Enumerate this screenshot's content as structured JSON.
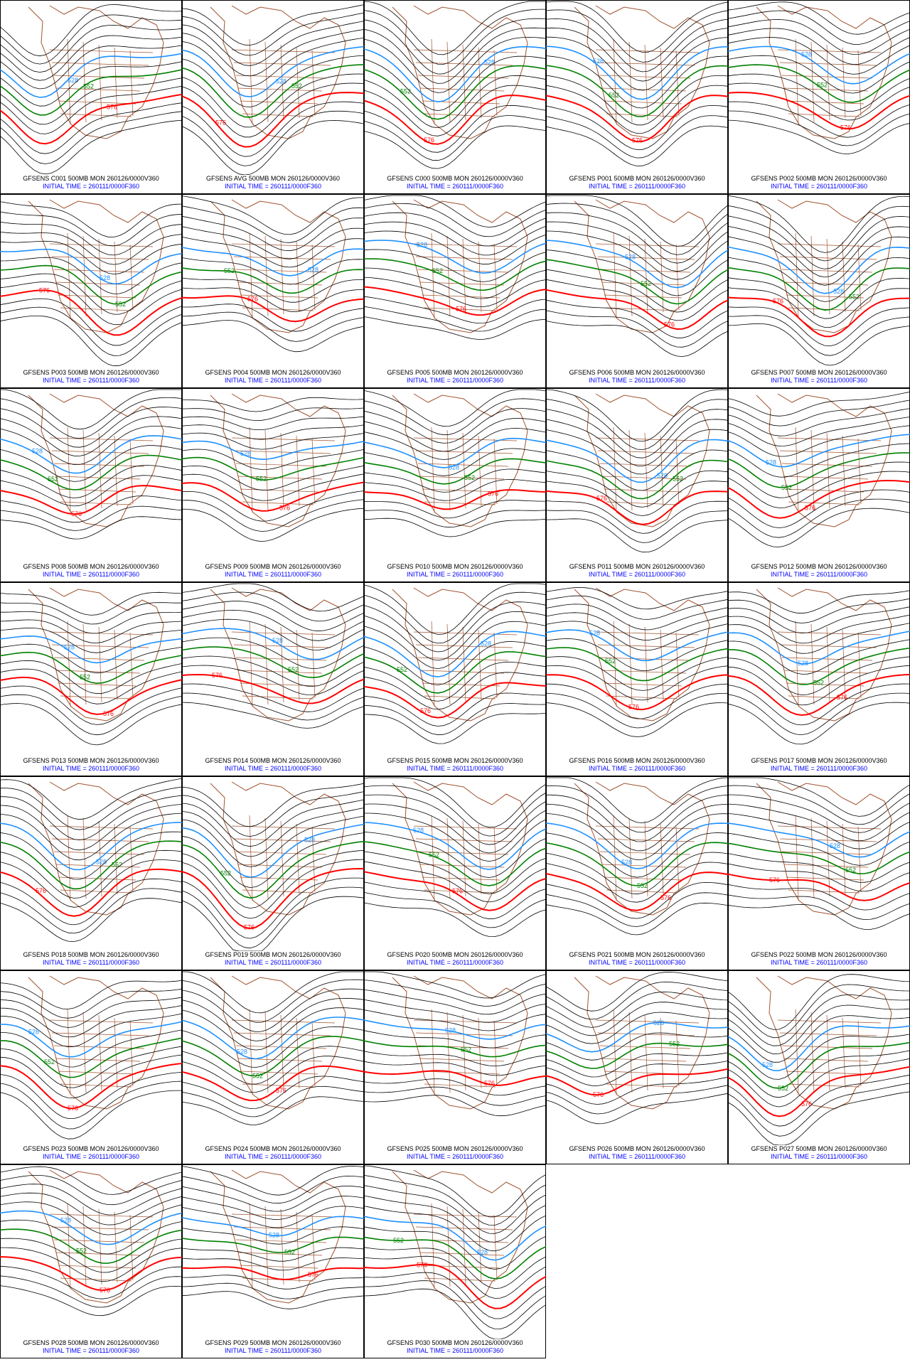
{
  "contour_labels": {
    "blue": "528",
    "green": "552",
    "red": "576"
  },
  "init_line": "INITIAL TIME = 260111/0000F360",
  "panels": [
    {
      "title": "GFSENS C001 500MB MON 260126/0000V360"
    },
    {
      "title": "GFSENS AVG 500MB MON 260126/0000V360"
    },
    {
      "title": "GFSENS C000 500MB MON 260126/0000V360"
    },
    {
      "title": "GFSENS P001 500MB MON 260126/0000V360"
    },
    {
      "title": "GFSENS P002 500MB MON 260126/0000V360"
    },
    {
      "title": "GFSENS P003 500MB MON 260126/0000V360"
    },
    {
      "title": "GFSENS P004 500MB MON 260126/0000V360"
    },
    {
      "title": "GFSENS P005 500MB MON 260126/0000V360"
    },
    {
      "title": "GFSENS P006 500MB MON 260126/0000V360"
    },
    {
      "title": "GFSENS P007 500MB MON 260126/0000V360"
    },
    {
      "title": "GFSENS P008 500MB MON 260126/0000V360"
    },
    {
      "title": "GFSENS P009 500MB MON 260126/0000V360"
    },
    {
      "title": "GFSENS P010 500MB MON 260126/0000V360"
    },
    {
      "title": "GFSENS P011 500MB MON 260126/0000V360"
    },
    {
      "title": "GFSENS P012 500MB MON 260126/0000V360"
    },
    {
      "title": "GFSENS P013 500MB MON 260126/0000V360"
    },
    {
      "title": "GFSENS P014 500MB MON 260126/0000V360"
    },
    {
      "title": "GFSENS P015 500MB MON 260126/0000V360"
    },
    {
      "title": "GFSENS P016 500MB MON 260126/0000V360"
    },
    {
      "title": "GFSENS P017 500MB MON 260126/0000V360"
    },
    {
      "title": "GFSENS P018 500MB MON 260126/0000V360"
    },
    {
      "title": "GFSENS P019 500MB MON 260126/0000V360"
    },
    {
      "title": "GFSENS P020 500MB MON 260126/0000V360"
    },
    {
      "title": "GFSENS P021 500MB MON 260126/0000V360"
    },
    {
      "title": "GFSENS P022 500MB MON 260126/0000V360"
    },
    {
      "title": "GFSENS P023 500MB MON 260126/0000V360"
    },
    {
      "title": "GFSENS P024 500MB MON 260126/0000V360"
    },
    {
      "title": "GFSENS P025 500MB MON 260126/0000V360"
    },
    {
      "title": "GFSENS P026 500MB MON 260126/0000V360"
    },
    {
      "title": "GFSENS P027 500MB MON 260126/0000V360"
    },
    {
      "title": "GFSENS P028 500MB MON 260126/0000V360"
    },
    {
      "title": "GFSENS P029 500MB MON 260126/0000V360"
    },
    {
      "title": "GFSENS P030 500MB MON 260126/0000V360"
    }
  ]
}
